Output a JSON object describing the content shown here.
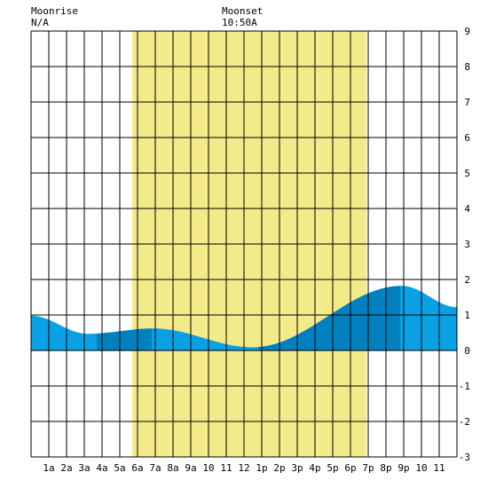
{
  "header": {
    "moonrise_label": "Moonrise",
    "moonrise_value": "N/A",
    "moonset_label": "Moonset",
    "moonset_value": "10:50A"
  },
  "chart_data": {
    "type": "area",
    "title": "",
    "xlabel": "",
    "ylabel": "",
    "xlim": [
      0,
      24
    ],
    "ylim": [
      -3,
      9
    ],
    "grid": true,
    "x_ticks": [
      1,
      2,
      3,
      4,
      5,
      6,
      7,
      8,
      9,
      10,
      11,
      12,
      13,
      14,
      15,
      16,
      17,
      18,
      19,
      20,
      21,
      22,
      23
    ],
    "x_tick_labels": [
      "1a",
      "2a",
      "3a",
      "4a",
      "5a",
      "6a",
      "7a",
      "8a",
      "9a",
      "10",
      "11",
      "12",
      "1p",
      "2p",
      "3p",
      "4p",
      "5p",
      "6p",
      "7p",
      "8p",
      "9p",
      "10",
      "11"
    ],
    "y_ticks": [
      -3,
      -2,
      -1,
      0,
      1,
      2,
      3,
      4,
      5,
      6,
      7,
      8,
      9
    ],
    "y_tick_labels": [
      "-3",
      "-2",
      "-1",
      "0",
      "1",
      "2",
      "3",
      "4",
      "5",
      "6",
      "7",
      "8",
      "9"
    ],
    "daylight": {
      "start": 5.7,
      "end": 18.9,
      "color": "#f3ea8a"
    },
    "colors": {
      "tide_light": "#0aa0e4",
      "tide_dark": "#0080bf",
      "grid": "#000000"
    },
    "tide_extrema": [
      {
        "x": 0.0,
        "y": 0.98
      },
      {
        "x": 3.2,
        "y": 0.47
      },
      {
        "x": 6.9,
        "y": 0.62
      },
      {
        "x": 12.5,
        "y": 0.09
      },
      {
        "x": 20.9,
        "y": 1.82
      },
      {
        "x": 24.0,
        "y": 1.22
      }
    ],
    "dark_bands": [
      [
        3.7,
        6.8
      ],
      [
        12.8,
        20.8
      ]
    ]
  }
}
